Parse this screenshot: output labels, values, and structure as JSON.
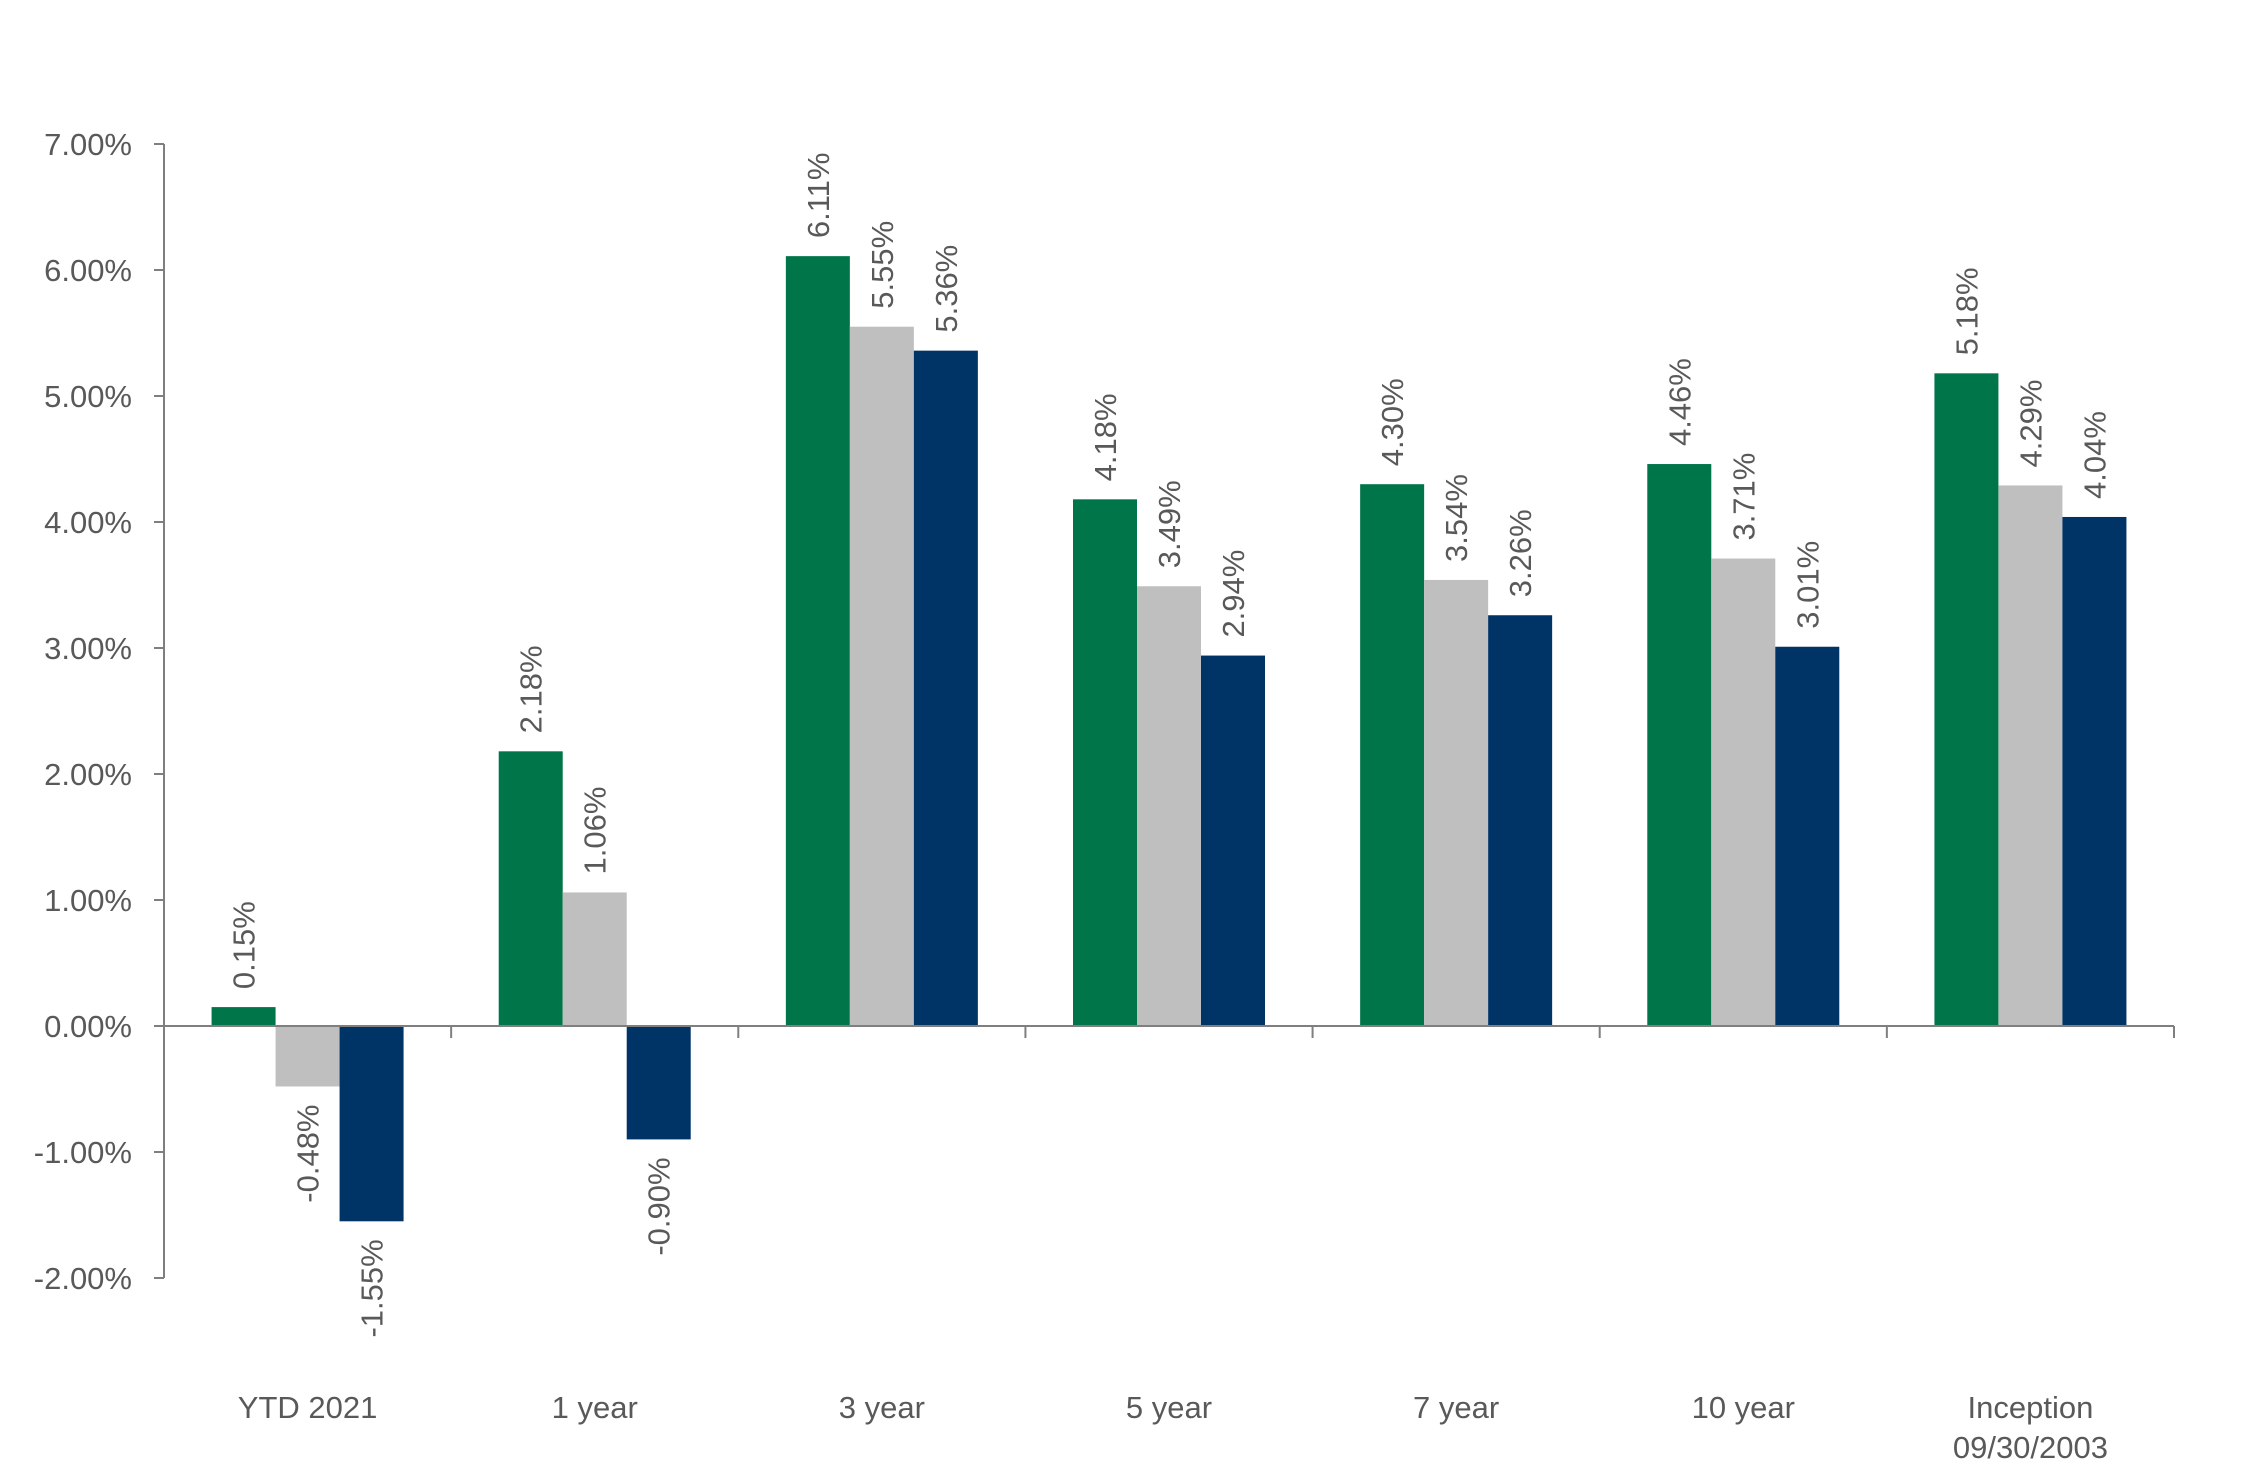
{
  "chart_data": {
    "type": "bar",
    "categories": [
      [
        "YTD 2021"
      ],
      [
        "1 year"
      ],
      [
        "3 year"
      ],
      [
        "5 year"
      ],
      [
        "7 year"
      ],
      [
        "10 year"
      ],
      [
        "Inception",
        "09/30/2003"
      ]
    ],
    "series": [
      {
        "values": [
          0.15,
          2.18,
          6.11,
          4.18,
          4.3,
          4.46,
          5.18
        ],
        "labels": [
          "0.15%",
          "2.18%",
          "6.11%",
          "4.18%",
          "4.30%",
          "4.46%",
          "5.18%"
        ],
        "color": "#00754A"
      },
      {
        "values": [
          -0.48,
          1.06,
          5.55,
          3.49,
          3.54,
          3.71,
          4.29
        ],
        "labels": [
          "-0.48%",
          "1.06%",
          "5.55%",
          "3.49%",
          "3.54%",
          "3.71%",
          "4.29%"
        ],
        "color": "#BFBFBF"
      },
      {
        "values": [
          -1.55,
          -0.9,
          5.36,
          2.94,
          3.26,
          3.01,
          4.04
        ],
        "labels": [
          "-1.55%",
          "-0.90%",
          "5.36%",
          "2.94%",
          "3.26%",
          "3.01%",
          "4.04%"
        ],
        "color": "#003366"
      }
    ],
    "yticks": [
      7,
      6,
      5,
      4,
      3,
      2,
      1,
      0,
      -1,
      -2
    ],
    "ytick_labels": [
      "7.00%",
      "6.00%",
      "5.00%",
      "4.00%",
      "3.00%",
      "2.00%",
      "1.00%",
      "0.00%",
      "-1.00%",
      "-2.00%"
    ],
    "ylim": [
      -2,
      7
    ],
    "xlabel": "",
    "ylabel": "",
    "title": "",
    "grid": false,
    "legend": "none"
  }
}
